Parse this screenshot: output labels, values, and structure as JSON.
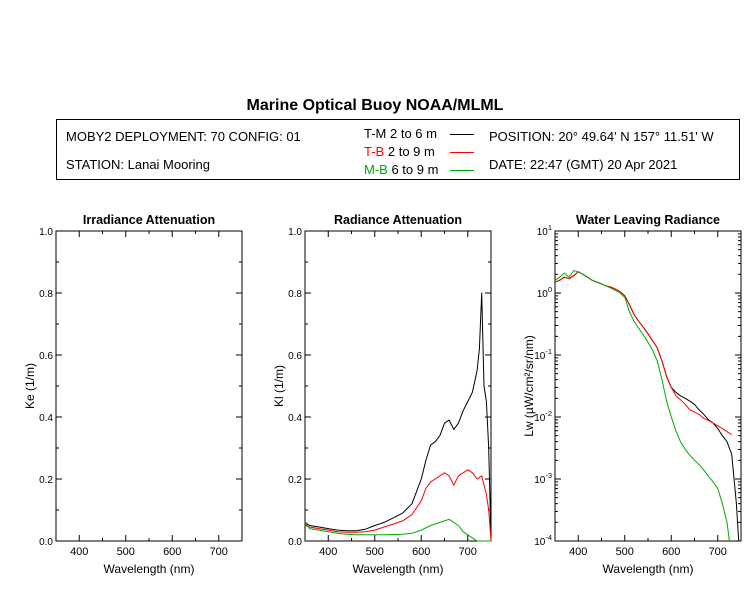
{
  "title": "Marine Optical Buoy NOAA/MLML",
  "info": {
    "deployment": "MOBY2 DEPLOYMENT: 70 CONFIG: 01",
    "station": "STATION: Lanai Mooring",
    "position": "POSITION: 20° 49.64' N   157° 11.51' W",
    "date": "DATE: 22:47 (GMT) 20 Apr 2021"
  },
  "legend": [
    {
      "tag": "T-M",
      "range": "2 to 6  m",
      "color": "#000000"
    },
    {
      "tag": "T-B",
      "range": "2 to 9  m",
      "color": "#ff0000"
    },
    {
      "tag": "M-B",
      "range": "6 to 9  m",
      "color": "#00aa00"
    }
  ],
  "chart_data": [
    {
      "type": "line",
      "title": "Irradiance Attenuation",
      "xlabel": "Wavelength (nm)",
      "ylabel": "Ke  (1/m)",
      "xlim": [
        350,
        750
      ],
      "ylim": [
        0,
        1.0
      ],
      "xticks": [
        "400",
        "500",
        "600",
        "700"
      ],
      "yticks": [
        "0.0",
        "0.2",
        "0.4",
        "0.6",
        "0.8",
        "1.0"
      ],
      "series": []
    },
    {
      "type": "line",
      "title": "Radiance Attenuation",
      "xlabel": "Wavelength (nm)",
      "ylabel": "Kl  (1/m)",
      "xlim": [
        350,
        750
      ],
      "ylim": [
        0,
        1.0
      ],
      "xticks": [
        "400",
        "500",
        "600",
        "700"
      ],
      "yticks": [
        "0.0",
        "0.2",
        "0.4",
        "0.6",
        "0.8",
        "1.0"
      ],
      "series": [
        {
          "name": "T-M",
          "color": "#000000",
          "x": [
            350,
            360,
            380,
            400,
            420,
            440,
            460,
            480,
            500,
            520,
            540,
            560,
            580,
            600,
            610,
            620,
            630,
            640,
            650,
            660,
            670,
            680,
            690,
            700,
            710,
            720,
            725,
            730,
            735,
            740,
            745,
            750
          ],
          "y": [
            0.06,
            0.05,
            0.045,
            0.04,
            0.035,
            0.033,
            0.033,
            0.038,
            0.05,
            0.06,
            0.075,
            0.09,
            0.12,
            0.2,
            0.26,
            0.31,
            0.32,
            0.34,
            0.38,
            0.39,
            0.36,
            0.38,
            0.42,
            0.45,
            0.48,
            0.55,
            0.62,
            0.8,
            0.5,
            0.45,
            0.3,
            0.0
          ]
        },
        {
          "name": "T-B",
          "color": "#ff0000",
          "x": [
            350,
            360,
            380,
            400,
            420,
            440,
            460,
            480,
            500,
            520,
            540,
            560,
            580,
            600,
            610,
            620,
            630,
            640,
            650,
            660,
            670,
            680,
            690,
            700,
            710,
            720,
            730,
            740,
            745,
            750
          ],
          "y": [
            0.05,
            0.045,
            0.04,
            0.035,
            0.03,
            0.028,
            0.028,
            0.03,
            0.035,
            0.045,
            0.055,
            0.065,
            0.085,
            0.13,
            0.17,
            0.19,
            0.2,
            0.21,
            0.22,
            0.21,
            0.18,
            0.21,
            0.22,
            0.23,
            0.22,
            0.2,
            0.21,
            0.15,
            0.1,
            0.0
          ]
        },
        {
          "name": "M-B",
          "color": "#00aa00",
          "x": [
            350,
            360,
            380,
            400,
            420,
            440,
            460,
            480,
            500,
            520,
            540,
            560,
            580,
            600,
            620,
            640,
            650,
            660,
            670,
            680,
            690,
            700,
            710,
            720,
            730,
            740,
            750
          ],
          "y": [
            0.06,
            0.04,
            0.035,
            0.03,
            0.025,
            0.022,
            0.02,
            0.02,
            0.02,
            0.02,
            0.021,
            0.022,
            0.025,
            0.035,
            0.05,
            0.06,
            0.065,
            0.07,
            0.06,
            0.05,
            0.03,
            0.02,
            0.01,
            0.0,
            0.0,
            0.0,
            0.0
          ]
        }
      ]
    },
    {
      "type": "line",
      "title": "Water Leaving Radiance",
      "xlabel": "Wavelength (nm)",
      "ylabel": "Lw  (µW/cm²/sr/nm)",
      "yscale": "log",
      "xlim": [
        350,
        750
      ],
      "ylim": [
        0.0001,
        10
      ],
      "xticks": [
        "400",
        "500",
        "600",
        "700"
      ],
      "yticks": [
        "10^-4",
        "10^-3",
        "10^-2",
        "10^-1",
        "10^0",
        "10^1"
      ],
      "series": [
        {
          "name": "T-M",
          "color": "#000000",
          "x": [
            350,
            360,
            370,
            380,
            390,
            400,
            410,
            420,
            430,
            440,
            450,
            460,
            470,
            480,
            490,
            500,
            510,
            520,
            530,
            540,
            550,
            560,
            570,
            580,
            590,
            600,
            610,
            620,
            630,
            640,
            650,
            660,
            670,
            680,
            690,
            700,
            710,
            720,
            730,
            740,
            745
          ],
          "y": [
            1.5,
            1.6,
            1.8,
            1.7,
            1.9,
            2.2,
            2.0,
            1.8,
            1.6,
            1.5,
            1.4,
            1.3,
            1.25,
            1.15,
            1.05,
            0.9,
            0.65,
            0.45,
            0.35,
            0.28,
            0.22,
            0.17,
            0.13,
            0.08,
            0.045,
            0.03,
            0.025,
            0.022,
            0.02,
            0.018,
            0.016,
            0.013,
            0.011,
            0.009,
            0.008,
            0.0065,
            0.005,
            0.004,
            0.0025,
            0.0004,
            0.0001
          ]
        },
        {
          "name": "T-B",
          "color": "#ff0000",
          "x": [
            350,
            360,
            370,
            380,
            390,
            400,
            410,
            420,
            430,
            440,
            450,
            460,
            470,
            480,
            490,
            500,
            510,
            520,
            530,
            540,
            550,
            560,
            570,
            580,
            590,
            600,
            610,
            620,
            630,
            640,
            650,
            660,
            670,
            680,
            690,
            700,
            710,
            720,
            730
          ],
          "y": [
            1.5,
            1.6,
            1.8,
            1.7,
            1.9,
            2.2,
            2.0,
            1.8,
            1.6,
            1.5,
            1.4,
            1.3,
            1.25,
            1.15,
            1.05,
            0.9,
            0.65,
            0.45,
            0.35,
            0.28,
            0.22,
            0.17,
            0.13,
            0.08,
            0.045,
            0.03,
            0.022,
            0.019,
            0.016,
            0.013,
            0.012,
            0.011,
            0.0095,
            0.0088,
            0.008,
            0.0072,
            0.0065,
            0.0058,
            0.0052
          ]
        },
        {
          "name": "M-B",
          "color": "#00aa00",
          "x": [
            350,
            360,
            370,
            380,
            390,
            400,
            410,
            420,
            430,
            440,
            450,
            460,
            470,
            480,
            490,
            500,
            510,
            520,
            530,
            540,
            550,
            560,
            570,
            580,
            590,
            600,
            610,
            620,
            630,
            640,
            650,
            660,
            670,
            680,
            690,
            700,
            710,
            720,
            725
          ],
          "y": [
            1.6,
            1.8,
            2.1,
            1.8,
            2.3,
            2.2,
            2.0,
            1.8,
            1.6,
            1.5,
            1.4,
            1.3,
            1.2,
            1.1,
            1.0,
            0.85,
            0.5,
            0.35,
            0.27,
            0.21,
            0.16,
            0.12,
            0.08,
            0.04,
            0.018,
            0.01,
            0.006,
            0.004,
            0.003,
            0.0024,
            0.002,
            0.0017,
            0.0014,
            0.0011,
            0.0009,
            0.0007,
            0.0004,
            0.0002,
            0.0001
          ]
        }
      ]
    }
  ]
}
